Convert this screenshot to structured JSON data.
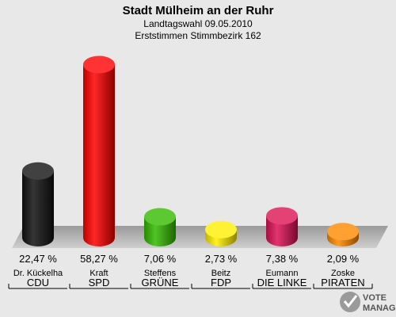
{
  "chart_data": {
    "type": "bar",
    "title": "Stadt Mülheim an der Ruhr",
    "subtitle_line1": "Landtagswahl 09.05.2010",
    "subtitle_line2": "Erststimmen Stimmbezirk 162",
    "ylim": [
      0,
      60
    ],
    "categories": [
      "CDU",
      "SPD",
      "GRÜNE",
      "FDP",
      "DIE LINKE",
      "PIRATEN"
    ],
    "candidates": [
      "Dr. Kückelha",
      "Kraft",
      "Steffens",
      "Beitz",
      "Eumann",
      "Zoske"
    ],
    "values": [
      22.47,
      58.27,
      7.06,
      2.73,
      7.38,
      2.09
    ],
    "value_labels": [
      "22,47 %",
      "58,27 %",
      "7,06 %",
      "2,73 %",
      "7,38 %",
      "2,09 %"
    ],
    "colors": [
      "#111111",
      "#ff0000",
      "#33bb00",
      "#ffee00",
      "#dd1155",
      "#ff8800"
    ]
  },
  "logo": {
    "line1": "VOTE",
    "line2": "MANAGER",
    "icon": "checkmark-ballot-icon"
  }
}
